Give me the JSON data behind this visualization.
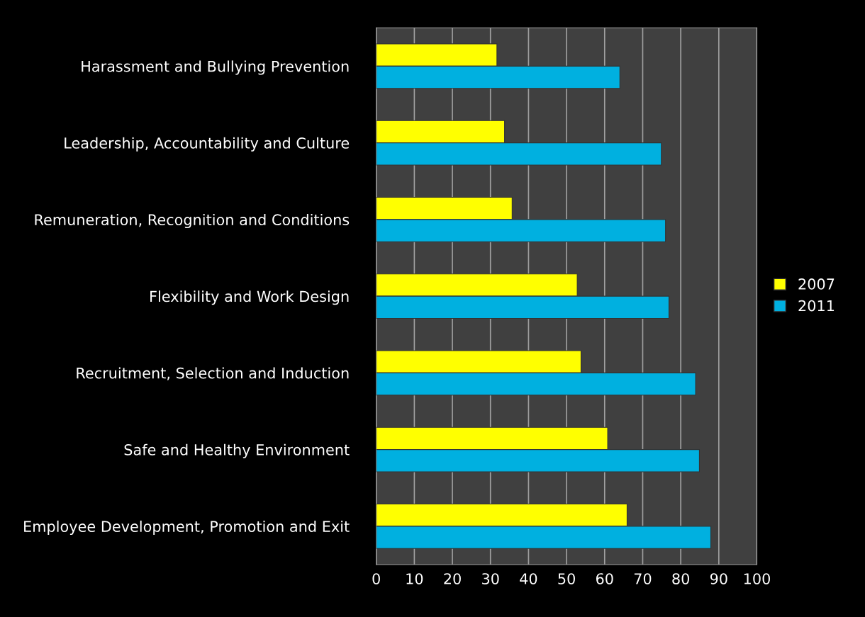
{
  "chart_data": {
    "type": "bar",
    "orientation": "horizontal",
    "categories": [
      "Harassment and Bullying Prevention",
      "Leadership, Accountability and Culture",
      "Remuneration, Recognition and Conditions",
      "Flexibility and Work Design",
      "Recruitment, Selection and Induction",
      "Safe and Healthy Environment",
      "Employee Development, Promotion and Exit"
    ],
    "series": [
      {
        "name": "2007",
        "color": "#ffff00",
        "values": [
          31.7,
          33.7,
          35.7,
          52.8,
          53.8,
          60.8,
          65.9
        ]
      },
      {
        "name": "2011",
        "color": "#00b0e0",
        "values": [
          64,
          74.9,
          76,
          76.9,
          83.9,
          84.9,
          87.9
        ]
      }
    ],
    "xlim": [
      0,
      100
    ],
    "xticks": [
      0,
      10,
      20,
      30,
      40,
      50,
      60,
      70,
      80,
      90,
      100
    ],
    "grid": "x",
    "legend": "right"
  }
}
